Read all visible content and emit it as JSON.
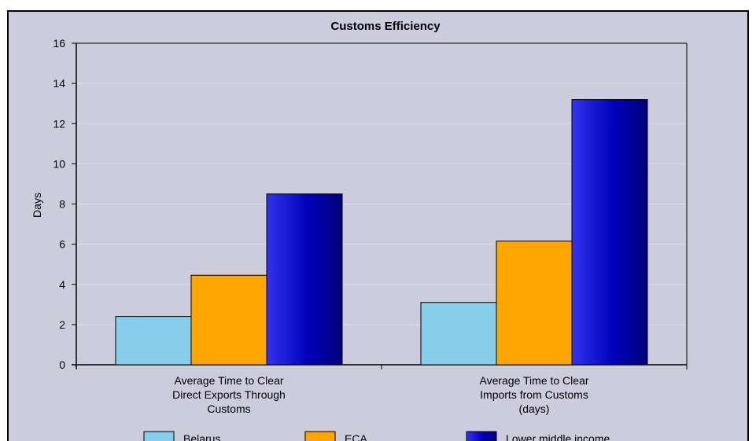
{
  "chart_data": {
    "type": "bar",
    "title": "Customs Efficiency",
    "xlabel": "",
    "ylabel": "Days",
    "ylim": [
      0,
      16
    ],
    "yticks": [
      0,
      2,
      4,
      6,
      8,
      10,
      12,
      14,
      16
    ],
    "grid": true,
    "legend_position": "bottom",
    "categories": [
      [
        "Average Time to Clear",
        "Direct Exports Through",
        "Customs"
      ],
      [
        "Average Time to Clear",
        "Imports from Customs",
        "(days)"
      ]
    ],
    "series": [
      {
        "name": "Belarus",
        "values": [
          2.4,
          3.1
        ],
        "color": "#87CEEB"
      },
      {
        "name": "ECA",
        "values": [
          4.45,
          6.15
        ],
        "color": "#FFA500"
      },
      {
        "name": "Lower middle income",
        "values": [
          8.5,
          13.2
        ],
        "color": "#0000B0"
      }
    ],
    "colors": {
      "background": "#CCCCDD",
      "plot_background": "#CCCCDD",
      "frame": "#000000"
    }
  }
}
